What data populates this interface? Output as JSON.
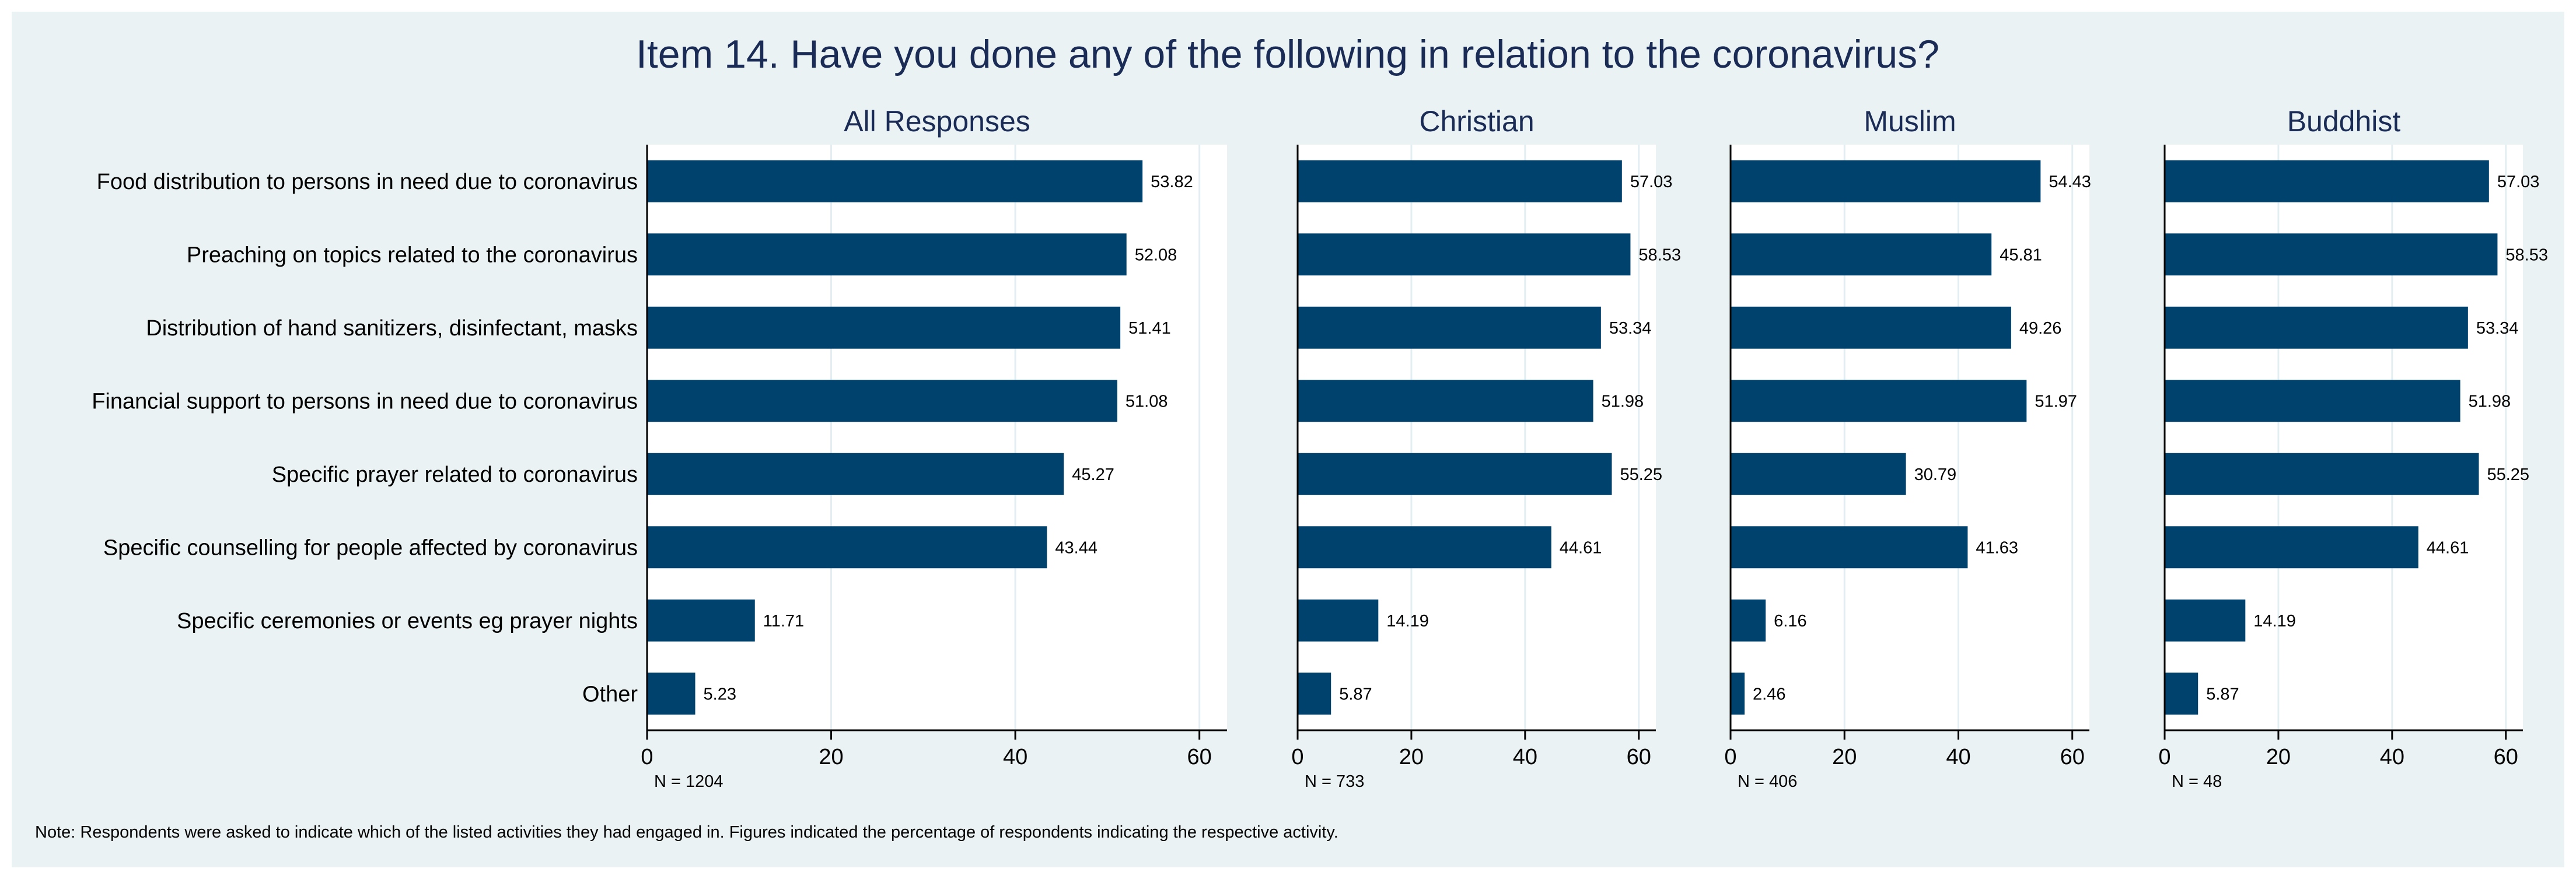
{
  "chart_data": {
    "type": "bar",
    "orientation": "horizontal",
    "title": "Item 14. Have you done any of the following in relation to the coronavirus?",
    "categories": [
      "Food distribution to persons in need due to coronavirus",
      "Preaching on topics related to the coronavirus",
      "Distribution of hand sanitizers, disinfectant, masks",
      "Financial support to persons in need due to coronavirus",
      "Specific prayer related to coronavirus",
      "Specific counselling for people affected by coronavirus",
      "Specific ceremonies or events eg prayer nights",
      "Other"
    ],
    "xlim": [
      0,
      63
    ],
    "xticks": [
      0,
      20,
      40,
      60
    ],
    "grid": true,
    "panels": [
      {
        "name": "All Responses",
        "n": "N = 1204",
        "values": [
          53.82,
          52.08,
          51.41,
          51.08,
          45.27,
          43.44,
          11.71,
          5.23
        ]
      },
      {
        "name": "Christian",
        "n": "N = 733",
        "values": [
          57.03,
          58.53,
          53.34,
          51.98,
          55.25,
          44.61,
          14.19,
          5.87
        ]
      },
      {
        "name": "Muslim",
        "n": "N = 406",
        "values": [
          54.43,
          45.81,
          49.26,
          51.97,
          30.79,
          41.63,
          6.16,
          2.46
        ]
      },
      {
        "name": "Buddhist",
        "n": "N = 48",
        "values": [
          57.03,
          58.53,
          53.34,
          51.98,
          55.25,
          44.61,
          14.19,
          5.87
        ]
      }
    ],
    "note": "Note: Respondents were asked to indicate which of the listed activities they had engaged in. Figures indicated the percentage of respondents indicating the respective activity."
  },
  "colors": {
    "bar": "#00426e",
    "panel_bg": "#ffffff",
    "outer_bg": "#eaf2f3",
    "grid": "#e3eef2",
    "title": "#1a2c55"
  }
}
